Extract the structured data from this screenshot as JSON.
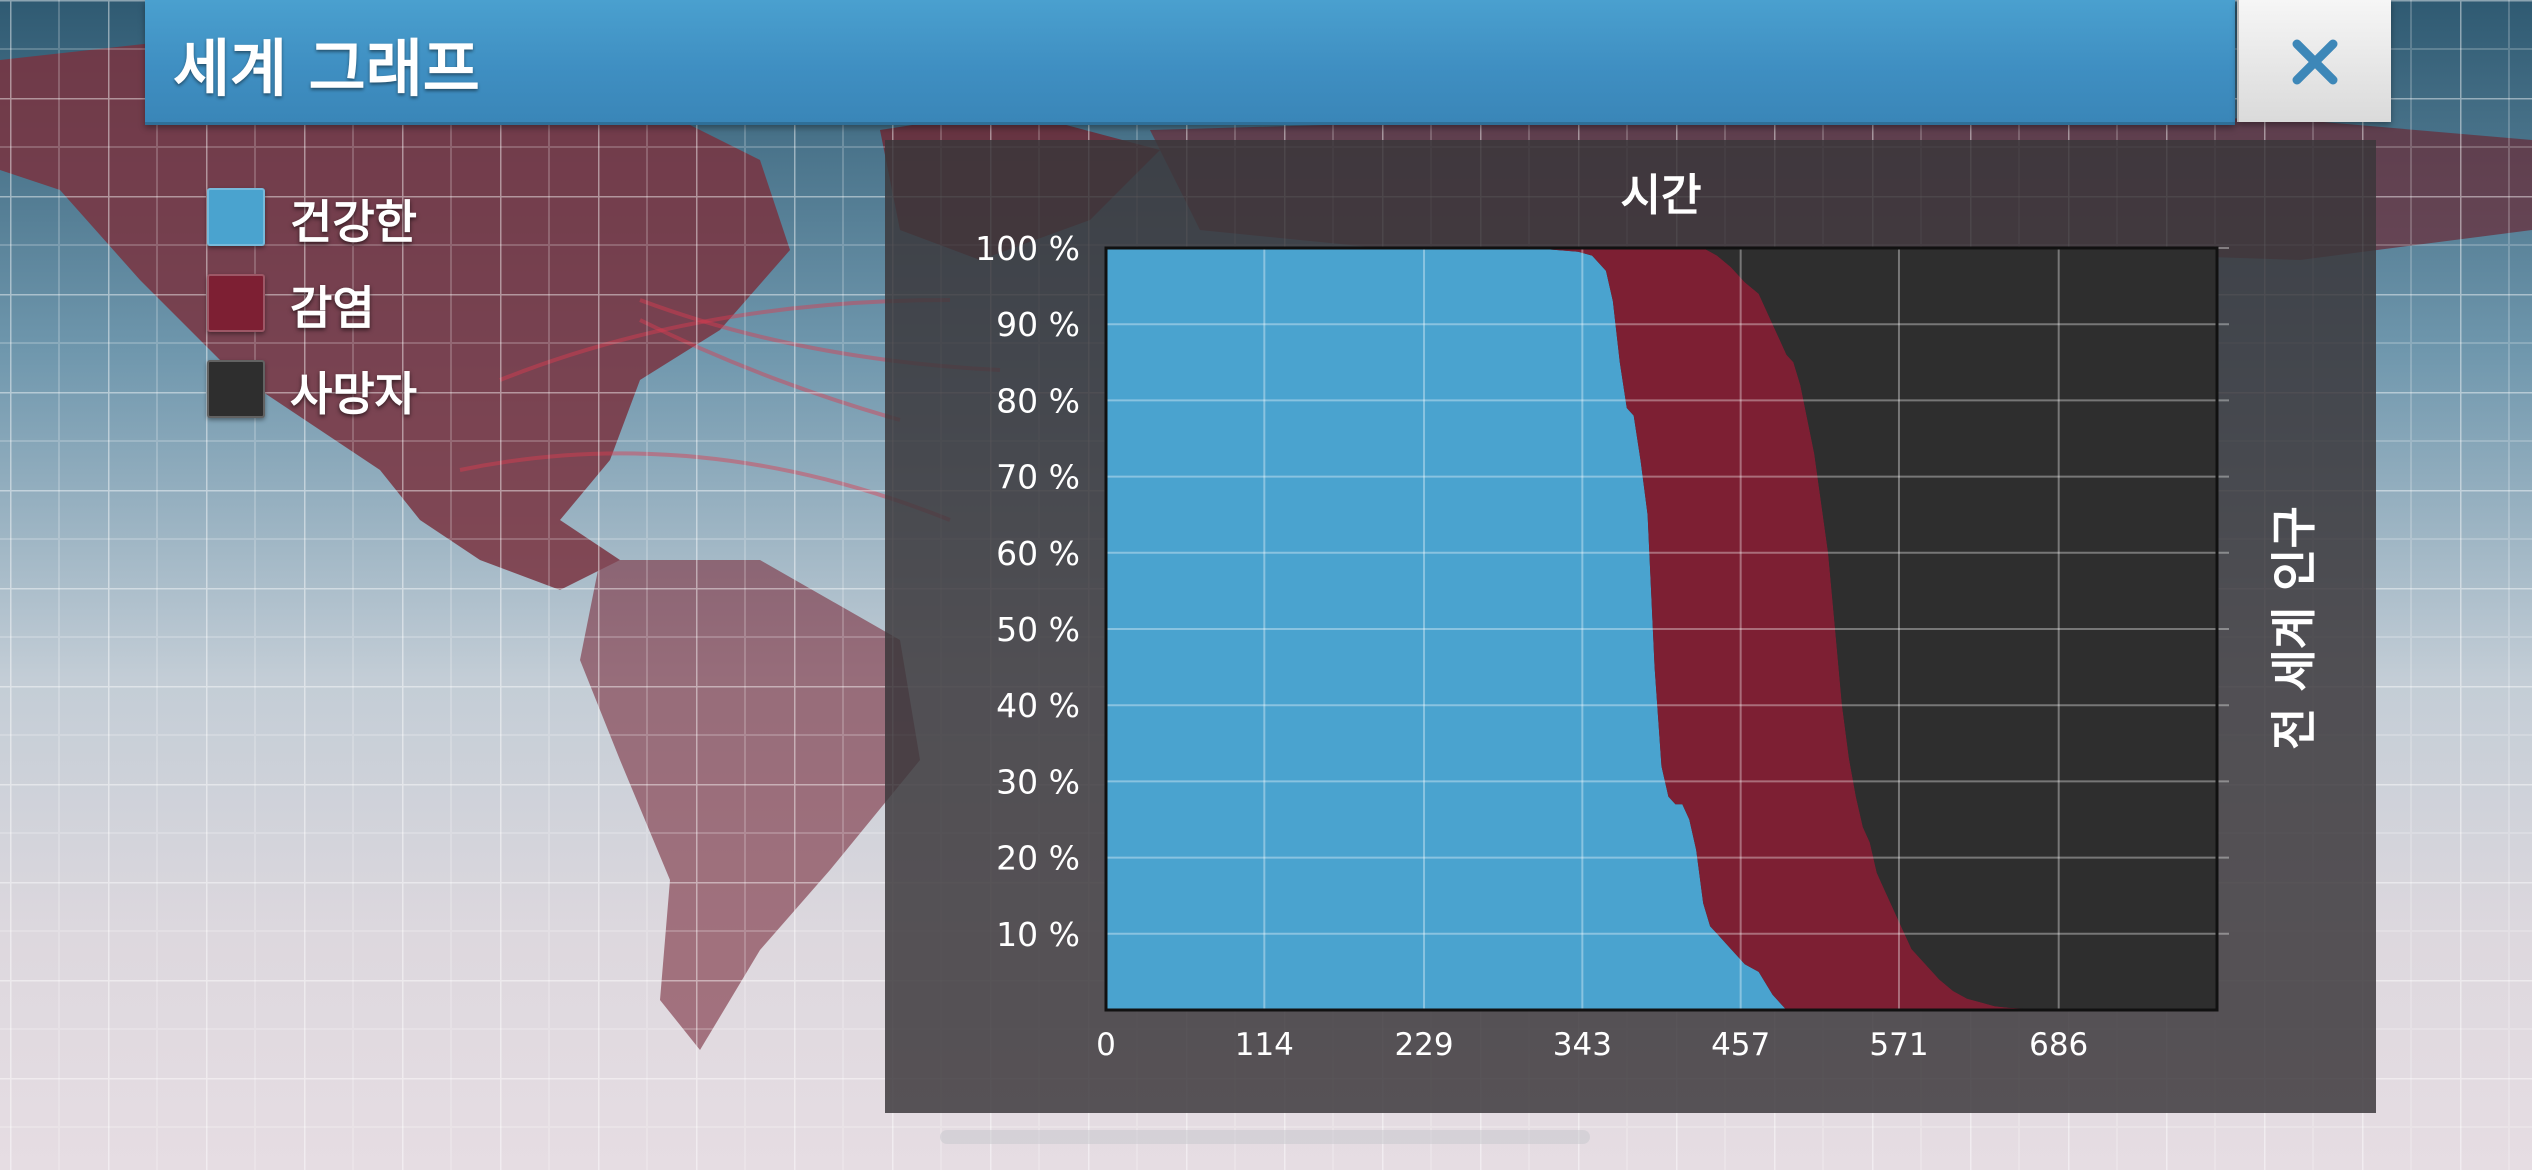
{
  "window": {
    "title": "세계 그래프",
    "close_icon": "close-icon",
    "close_glyph": "✕"
  },
  "legend": [
    {
      "label": "건강한",
      "color": "#4aa3cf"
    },
    {
      "label": "감염",
      "color": "#7d1f33"
    },
    {
      "label": "사망자",
      "color": "#2e2e2e"
    }
  ],
  "chart_data": {
    "type": "area",
    "stacked": true,
    "title": "시간",
    "xlabel": "",
    "ylabel": "전 세계 인구",
    "xlim": [
      0,
      800
    ],
    "ylim": [
      0,
      100
    ],
    "x_ticks": [
      "0",
      "114",
      "229",
      "343",
      "457",
      "571",
      "686"
    ],
    "y_ticks": [
      "10 %",
      "20 %",
      "30 %",
      "40 %",
      "50 %",
      "60 %",
      "70 %",
      "80 %",
      "90 %",
      "100 %"
    ],
    "grid": true,
    "x": [
      0,
      100,
      200,
      280,
      300,
      320,
      340,
      350,
      360,
      365,
      370,
      375,
      380,
      385,
      390,
      395,
      400,
      405,
      410,
      415,
      420,
      425,
      430,
      435,
      440,
      450,
      460,
      470,
      480,
      490,
      495,
      500,
      510,
      520,
      525,
      530,
      535,
      540,
      545,
      550,
      555,
      560,
      565,
      570,
      580,
      590,
      600,
      610,
      620,
      630,
      640,
      650,
      660,
      680,
      700,
      800
    ],
    "series": [
      {
        "name": "건강한",
        "color": "#4aa3cf",
        "values": [
          100,
          100,
          100,
          100,
          99.9,
          99.8,
          99.5,
          99,
          97,
          93,
          85,
          79,
          78,
          72,
          65,
          45,
          32,
          28,
          27,
          27,
          25,
          21,
          14,
          11,
          10,
          8,
          6,
          5,
          2,
          0,
          0,
          0,
          0,
          0,
          0,
          0,
          0,
          0,
          0,
          0,
          0,
          0,
          0,
          0,
          0,
          0,
          0,
          0,
          0,
          0,
          0,
          0,
          0,
          0,
          0,
          0
        ]
      },
      {
        "name": "감염",
        "color": "#7d1f33",
        "values": [
          0,
          0,
          0,
          0,
          0.1,
          0.2,
          0.5,
          1,
          3,
          7,
          15,
          21,
          22,
          28,
          35,
          55,
          68,
          72,
          73,
          73,
          75,
          79,
          86,
          88.5,
          89,
          89.5,
          89.5,
          89,
          88,
          86,
          85,
          82,
          73,
          60,
          50,
          40,
          33,
          28,
          24,
          22,
          18,
          16,
          14,
          12,
          8,
          6,
          4,
          2.5,
          1.5,
          1,
          0.5,
          0.3,
          0.2,
          0,
          0,
          0
        ]
      },
      {
        "name": "사망자",
        "color": "#2e2e2e",
        "values": [
          0,
          0,
          0,
          0,
          0,
          0,
          0,
          0,
          0,
          0,
          0,
          0,
          0,
          0,
          0,
          0,
          0,
          0,
          0,
          0,
          0,
          0,
          0,
          0.5,
          1,
          2.5,
          4.5,
          6,
          10,
          14,
          15,
          18,
          27,
          40,
          50,
          60,
          67,
          72,
          76,
          78,
          82,
          84,
          86,
          88,
          92,
          94,
          96,
          97.5,
          98.5,
          99,
          99.5,
          99.7,
          99.8,
          100,
          100,
          100
        ]
      }
    ]
  }
}
